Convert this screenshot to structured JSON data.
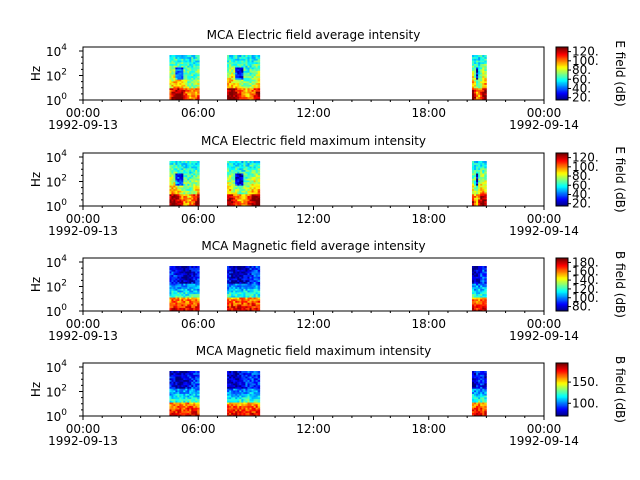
{
  "chart_data": [
    {
      "type": "heatmap",
      "title": "MCA  Electric field average intensity",
      "ylabel": "Hz",
      "y_scale": "log",
      "y_ticks": [
        {
          "exp": "0"
        },
        {
          "exp": "2"
        },
        {
          "exp": "4"
        }
      ],
      "x_ticks": [
        "00:00",
        "06:00",
        "12:00",
        "18:00",
        "00:00"
      ],
      "x_start_date": "1992-09-13",
      "x_end_date": "1992-09-14",
      "colorbar": {
        "label": "E field (dB)",
        "min": 15,
        "max": 130,
        "ticks": [
          20,
          40,
          60,
          80,
          100,
          120
        ]
      },
      "intervals": [
        {
          "start_hour": 4.5,
          "end_hour": 6.05,
          "profile": "e"
        },
        {
          "start_hour": 7.5,
          "end_hour": 9.2,
          "profile": "e"
        },
        {
          "start_hour": 20.25,
          "end_hour": 21.0,
          "profile": "e"
        }
      ]
    },
    {
      "type": "heatmap",
      "title": "MCA  Electric field maximum intensity",
      "ylabel": "Hz",
      "y_scale": "log",
      "y_ticks": [
        {
          "exp": "0"
        },
        {
          "exp": "2"
        },
        {
          "exp": "4"
        }
      ],
      "x_ticks": [
        "00:00",
        "06:00",
        "12:00",
        "18:00",
        "00:00"
      ],
      "x_start_date": "1992-09-13",
      "x_end_date": "1992-09-14",
      "colorbar": {
        "label": "E field (dB)",
        "min": 15,
        "max": 130,
        "ticks": [
          20,
          40,
          60,
          80,
          100,
          120
        ]
      },
      "intervals": [
        {
          "start_hour": 4.5,
          "end_hour": 6.05,
          "profile": "e"
        },
        {
          "start_hour": 7.5,
          "end_hour": 9.2,
          "profile": "e"
        },
        {
          "start_hour": 20.25,
          "end_hour": 21.0,
          "profile": "e"
        }
      ]
    },
    {
      "type": "heatmap",
      "title": "MCA  Magnetic field average intensity",
      "ylabel": "Hz",
      "y_scale": "log",
      "y_ticks": [
        {
          "exp": "0"
        },
        {
          "exp": "2"
        },
        {
          "exp": "4"
        }
      ],
      "x_ticks": [
        "00:00",
        "06:00",
        "12:00",
        "18:00",
        "00:00"
      ],
      "x_start_date": "1992-09-13",
      "x_end_date": "1992-09-14",
      "colorbar": {
        "label": "B field (dB)",
        "min": 70,
        "max": 190,
        "ticks": [
          80,
          100,
          120,
          140,
          160,
          180
        ]
      },
      "intervals": [
        {
          "start_hour": 4.5,
          "end_hour": 6.05,
          "profile": "b"
        },
        {
          "start_hour": 7.5,
          "end_hour": 9.2,
          "profile": "b"
        },
        {
          "start_hour": 20.25,
          "end_hour": 21.0,
          "profile": "b"
        }
      ]
    },
    {
      "type": "heatmap",
      "title": "MCA  Magnetic field maximum intensity",
      "ylabel": "Hz",
      "y_scale": "log",
      "y_ticks": [
        {
          "exp": "0"
        },
        {
          "exp": "2"
        },
        {
          "exp": "4"
        }
      ],
      "x_ticks": [
        "00:00",
        "06:00",
        "12:00",
        "18:00",
        "00:00"
      ],
      "x_start_date": "1992-09-13",
      "x_end_date": "1992-09-14",
      "colorbar": {
        "label": "B field (dB)",
        "min": 70,
        "max": 195,
        "ticks": [
          100,
          150
        ]
      },
      "intervals": [
        {
          "start_hour": 4.5,
          "end_hour": 6.05,
          "profile": "b"
        },
        {
          "start_hour": 7.5,
          "end_hour": 9.2,
          "profile": "b"
        },
        {
          "start_hour": 20.25,
          "end_hour": 21.0,
          "profile": "b"
        }
      ]
    }
  ]
}
